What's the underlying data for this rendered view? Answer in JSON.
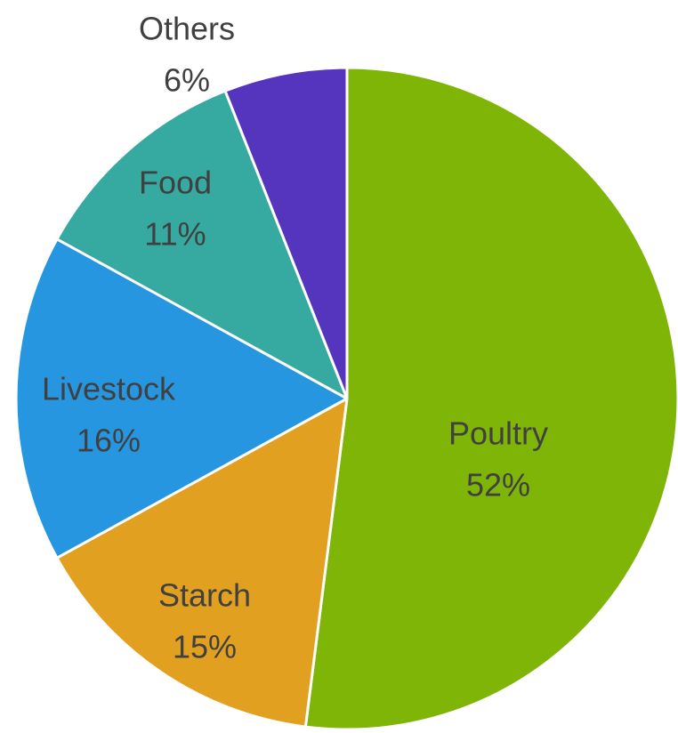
{
  "chart_data": {
    "type": "pie",
    "categories": [
      "Poultry",
      "Starch",
      "Livestock",
      "Food",
      "Others"
    ],
    "values": [
      52,
      15,
      16,
      11,
      6
    ],
    "value_labels": [
      "52%",
      "15%",
      "16%",
      "11%",
      "6%"
    ],
    "colors": [
      "#7fb506",
      "#e2a020",
      "#2796e0",
      "#36a9a0",
      "#5535bd"
    ]
  }
}
